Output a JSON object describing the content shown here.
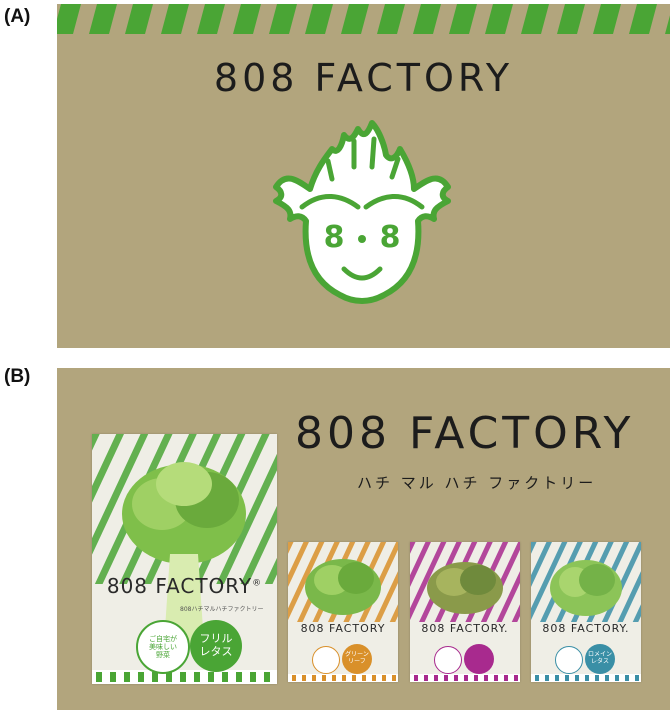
{
  "panel_a": {
    "label": "(A)",
    "title": "808 FACTORY",
    "mascot_eyes": [
      "8",
      "8"
    ],
    "stripe_color": "#4aa535",
    "background": "#b2a57d"
  },
  "panel_b": {
    "label": "(B)",
    "title": "808 FACTORY",
    "subtitle": "ハチ マル ハチ ファクトリー",
    "background": "#b2a57d",
    "packages": [
      {
        "logo": "808 FACTORY",
        "reg_mark": "®",
        "sub": "808ハチマルハチファクトリー",
        "accent": "#4aa535",
        "bubble_left": [
          "ご自宅が",
          "美味しい",
          "野菜"
        ],
        "bubble_right": [
          "フリル",
          "レタス"
        ]
      },
      {
        "logo": "808 FACTORY",
        "accent": "#d9902a",
        "bubble_right": [
          "グリーン",
          "リーフ"
        ]
      },
      {
        "logo": "808 FACTORY.",
        "accent": "#a82a8e",
        "bubble_right": [
          "",
          ""
        ]
      },
      {
        "logo": "808 FACTORY.",
        "accent": "#3a8fa6",
        "bubble_right": [
          "ロメイン",
          "レタス"
        ]
      }
    ]
  }
}
